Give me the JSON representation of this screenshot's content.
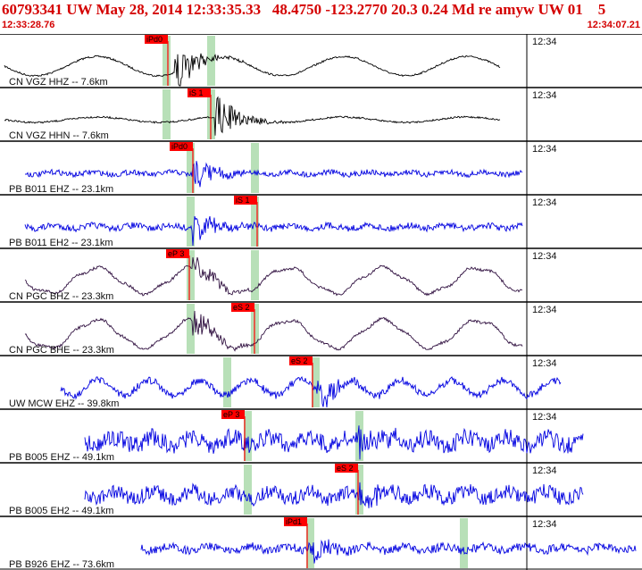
{
  "header": {
    "title": "60793341 UW May 28, 2014 12:33:35.33   48.4750 -123.2770 20.3 0.24 Md re amyw UW 01    5",
    "start_time": "12:33:28.76",
    "end_time": "12:34:07.21"
  },
  "colors": {
    "header_text": "#d40000",
    "pick_box": "#ff0000",
    "pick_window": "#b8e0b8",
    "trace_black": "#000000",
    "trace_blue": "#0000e0",
    "trace_dark": "#301040"
  },
  "traces": [
    {
      "label": "CN VGZ HHZ -- 7.6km",
      "clock": "12:34",
      "pick": "iPd0",
      "color": "trace_black"
    },
    {
      "label": "CN VGZ HHN -- 7.6km",
      "clock": "12:34",
      "pick": "iS 1",
      "color": "trace_black"
    },
    {
      "label": "PB B011 EHZ -- 23.1km",
      "clock": "12:34",
      "pick": "iPd0",
      "color": "trace_blue"
    },
    {
      "label": "PB B011 EH2 -- 23.1km",
      "clock": "12:34",
      "pick": "iS 1",
      "color": "trace_blue"
    },
    {
      "label": "CN PGC BHZ -- 23.3km",
      "clock": "12:34",
      "pick": "eP 3",
      "color": "trace_dark"
    },
    {
      "label": "CN PGC BHE -- 23.3km",
      "clock": "12:34",
      "pick": "eS 2",
      "color": "trace_dark"
    },
    {
      "label": "UW MCW EHZ -- 39.8km",
      "clock": "12:34",
      "pick": "eS 2",
      "color": "trace_blue"
    },
    {
      "label": "PB B005 EHZ -- 49.1km",
      "clock": "12:34",
      "pick": "eP 3",
      "color": "trace_blue"
    },
    {
      "label": "PB B005 EH2 -- 49.1km",
      "clock": "12:34",
      "pick": "eS 2",
      "color": "trace_blue"
    },
    {
      "label": "PB B926 EHZ -- 73.6km",
      "clock": "12:34",
      "pick": "iPd1",
      "color": "trace_blue"
    }
  ]
}
